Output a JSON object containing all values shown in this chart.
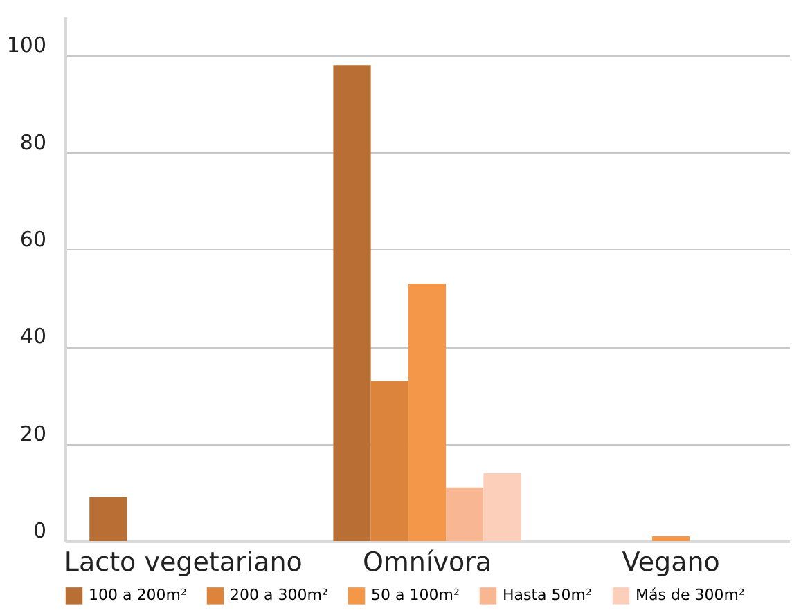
{
  "chart_data": {
    "type": "bar",
    "categories": [
      "Lacto vegetariano",
      "Omnívora",
      "Vegano"
    ],
    "series": [
      {
        "name": "100 a 200m²",
        "color": "#b96f33",
        "values": [
          9,
          98,
          null
        ]
      },
      {
        "name": "200 a 300m²",
        "color": "#dd843c",
        "values": [
          null,
          33,
          null
        ]
      },
      {
        "name": "50 a 100m²",
        "color": "#f59748",
        "values": [
          null,
          53,
          1
        ]
      },
      {
        "name": "Hasta 50m²",
        "color": "#f8b792",
        "values": [
          null,
          11,
          null
        ]
      },
      {
        "name": "Más de 300m²",
        "color": "#fbcfba",
        "values": [
          null,
          14,
          null
        ]
      }
    ],
    "ylim": [
      0,
      108
    ],
    "yticks": [
      0,
      20,
      40,
      60,
      80,
      100
    ],
    "grid": "y",
    "legend": "bottom"
  }
}
